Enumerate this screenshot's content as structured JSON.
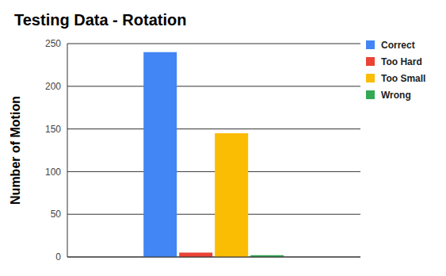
{
  "chart_data": {
    "type": "bar",
    "title": "Testing Data - Rotation",
    "y_label": "Number of Motion",
    "categories": [
      null
    ],
    "series": [
      {
        "name": "Correct",
        "color": "#4285f4",
        "values": [
          240
        ]
      },
      {
        "name": "Too Hard",
        "color": "#ea4335",
        "values": [
          5
        ]
      },
      {
        "name": "Too Small",
        "color": "#fbbc04",
        "values": [
          145
        ]
      },
      {
        "name": "Wrong",
        "color": "#34a853",
        "values": [
          2
        ]
      }
    ],
    "ylim": [
      0,
      250
    ],
    "yticks": [
      0,
      50,
      100,
      150,
      200,
      250
    ],
    "grid": true,
    "legend": "right"
  }
}
